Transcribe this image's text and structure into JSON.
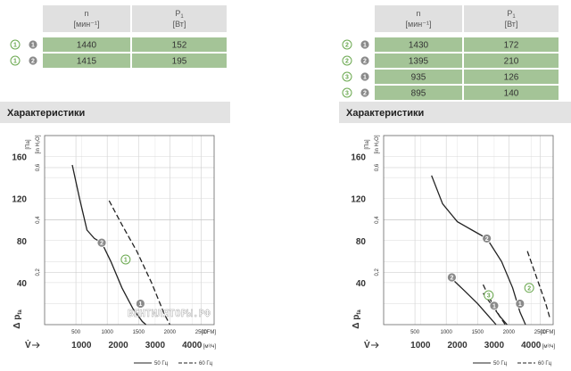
{
  "tables": [
    {
      "id": "left",
      "col1_header_main": "n",
      "col1_header_unit": "[мин⁻¹]",
      "col2_header_main": "P",
      "col2_header_sub": "1",
      "col2_header_unit": "[Вт]",
      "rows": [
        {
          "curve": "1",
          "speed": "1",
          "n": "1440",
          "p1": "152"
        },
        {
          "curve": "1",
          "speed": "2",
          "n": "1415",
          "p1": "195"
        }
      ]
    },
    {
      "id": "right",
      "col1_header_main": "n",
      "col1_header_unit": "[мин⁻¹]",
      "col2_header_main": "P",
      "col2_header_sub": "1",
      "col2_header_unit": "[Вт]",
      "rows": [
        {
          "curve": "2",
          "speed": "1",
          "n": "1430",
          "p1": "172"
        },
        {
          "curve": "2",
          "speed": "2",
          "n": "1395",
          "p1": "210"
        },
        {
          "curve": "3",
          "speed": "1",
          "n": "935",
          "p1": "126"
        },
        {
          "curve": "3",
          "speed": "2",
          "n": "895",
          "p1": "140"
        }
      ]
    }
  ],
  "section_title": "Характеристики",
  "watermark": "ВЕНТИЛЯТОРЫ.РФ",
  "colors": {
    "table_fill": "#a4c497",
    "header_fill": "#dcdcdc",
    "circle_grey": "#8a8a8a",
    "circle_green": "#6aa84f"
  },
  "chart_data": [
    {
      "type": "line",
      "y_axis_label": "Δ p",
      "y_axis_sub": "fa",
      "y_unit": "[Па]",
      "y2_unit": "[in H₂O]",
      "x_axis_label": "V̇",
      "x_unit": "[м³/ч]",
      "x2_unit": "[CFM]",
      "ylim": [
        0,
        180
      ],
      "y_ticks": [
        "40",
        "80",
        "120",
        "160"
      ],
      "y2_ticks": [
        "0,2",
        "0,4",
        "0,6"
      ],
      "xlim": [
        0,
        4600
      ],
      "x_ticks": [
        "1000",
        "2000",
        "3000",
        "4000"
      ],
      "x2_ticks": [
        "500",
        "1000",
        "1500",
        "2000",
        "2500"
      ],
      "legend": {
        "solid": "50 Гц",
        "dashed": "60 Гц"
      },
      "series": [
        {
          "curve_label": "2",
          "style": "solid",
          "x": [
            750,
            950,
            1150,
            1350,
            1550,
            1800,
            2100,
            2400,
            2650,
            2750
          ],
          "y": [
            152,
            120,
            90,
            82,
            78,
            60,
            35,
            15,
            3,
            0
          ]
        },
        {
          "curve_label": "1",
          "style": "dashed",
          "x": [
            1750,
            2100,
            2500,
            2900,
            3250,
            3400
          ],
          "y": [
            118,
            95,
            70,
            40,
            10,
            0
          ]
        }
      ],
      "markers": [
        {
          "label": "2",
          "x": 1550,
          "y": 78,
          "style": "grey"
        },
        {
          "label": "1",
          "x": 2200,
          "y": 62,
          "style": "green"
        },
        {
          "label": "1",
          "x": 2600,
          "y": 20,
          "style": "grey"
        }
      ]
    },
    {
      "type": "line",
      "y_axis_label": "Δ p",
      "y_axis_sub": "fa",
      "y_unit": "[Па]",
      "y2_unit": "[in H₂O]",
      "x_axis_label": "V̇",
      "x_unit": "[м³/ч]",
      "x2_unit": "[CFM]",
      "ylim": [
        0,
        180
      ],
      "y_ticks": [
        "40",
        "80",
        "120",
        "160"
      ],
      "y2_ticks": [
        "0,2",
        "0,4",
        "0,6"
      ],
      "xlim": [
        0,
        4600
      ],
      "x_ticks": [
        "1000",
        "2000",
        "3000",
        "4000"
      ],
      "x2_ticks": [
        "500",
        "1000",
        "1500",
        "2000",
        "2500"
      ],
      "legend": {
        "solid": "50 Гц",
        "dashed": "60 Гц"
      },
      "series": [
        {
          "curve_label": "2",
          "style": "solid",
          "x": [
            1300,
            1600,
            2000,
            2400,
            2800,
            3200,
            3500,
            3700,
            3850
          ],
          "y": [
            142,
            115,
            98,
            90,
            82,
            60,
            35,
            12,
            0
          ]
        },
        {
          "curve_label": "2",
          "style": "solid",
          "x": [
            1900,
            2200,
            2550,
            2850,
            3050
          ],
          "y": [
            42,
            32,
            20,
            8,
            0
          ]
        },
        {
          "curve_label": "3",
          "style": "dashed",
          "x": [
            2700,
            2950,
            3150,
            3300
          ],
          "y": [
            38,
            20,
            8,
            0
          ]
        },
        {
          "curve_label": "2",
          "style": "dashed",
          "x": [
            3900,
            4150,
            4400,
            4520
          ],
          "y": [
            70,
            45,
            20,
            5
          ]
        },
        {
          "curve_label": "3",
          "style": "solid",
          "x": [
            2700,
            2950,
            3150,
            3350
          ],
          "y": [
            30,
            18,
            8,
            0
          ]
        }
      ],
      "markers": [
        {
          "label": "2",
          "x": 2800,
          "y": 82,
          "style": "grey"
        },
        {
          "label": "2",
          "x": 1850,
          "y": 45,
          "style": "grey"
        },
        {
          "label": "2",
          "x": 3950,
          "y": 35,
          "style": "green"
        },
        {
          "label": "3",
          "x": 2850,
          "y": 28,
          "style": "green"
        },
        {
          "label": "1",
          "x": 3000,
          "y": 18,
          "style": "grey"
        },
        {
          "label": "1",
          "x": 3700,
          "y": 20,
          "style": "grey"
        }
      ]
    }
  ]
}
